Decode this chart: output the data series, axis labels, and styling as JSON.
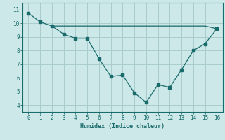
{
  "x": [
    0,
    1,
    2,
    3,
    4,
    5,
    6,
    7,
    8,
    9,
    10,
    11,
    12,
    13,
    14,
    15,
    16
  ],
  "y_curve": [
    10.75,
    10.1,
    9.8,
    9.2,
    8.9,
    8.9,
    7.4,
    6.1,
    6.2,
    4.9,
    4.2,
    5.5,
    5.3,
    6.6,
    8.0,
    8.5,
    9.6
  ],
  "x_flat": [
    2,
    3,
    4,
    5,
    6,
    7,
    8,
    9,
    10,
    11,
    12,
    13,
    14,
    15,
    16
  ],
  "y_flat": [
    9.8,
    9.8,
    9.8,
    9.8,
    9.8,
    9.8,
    9.8,
    9.8,
    9.8,
    9.8,
    9.8,
    9.8,
    9.8,
    9.8,
    9.6
  ],
  "line_color": "#1a6b6b",
  "bg_color": "#cce8e8",
  "grid_color": "#aacccc",
  "xlabel": "Humidex (Indice chaleur)",
  "xlim": [
    -0.5,
    16.5
  ],
  "ylim": [
    3.5,
    11.5
  ],
  "yticks": [
    4,
    5,
    6,
    7,
    8,
    9,
    10,
    11
  ],
  "xticks": [
    0,
    1,
    2,
    3,
    4,
    5,
    6,
    7,
    8,
    9,
    10,
    11,
    12,
    13,
    14,
    15,
    16
  ]
}
